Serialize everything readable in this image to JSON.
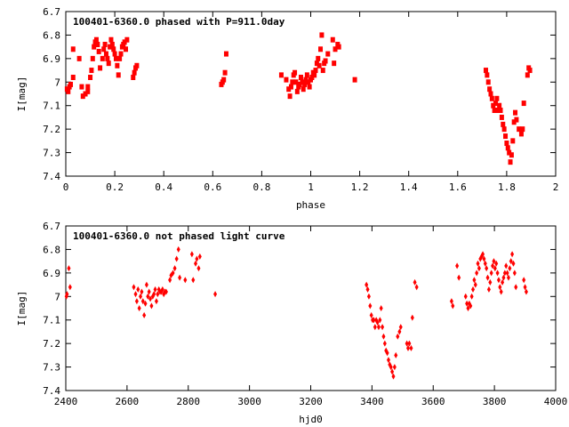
{
  "chart_data": [
    {
      "type": "scatter",
      "title": "100401-6360.0 phased with P=911.0day",
      "xlabel": "phase",
      "ylabel": "I[mag]",
      "xlim": [
        0,
        2
      ],
      "ylim": [
        6.7,
        7.4
      ],
      "y_inverted": true,
      "x_ticks": [
        "0",
        "0.2",
        "0.4",
        "0.6",
        "0.8",
        "1",
        "1.2",
        "1.4",
        "1.6",
        "1.8",
        "2"
      ],
      "y_ticks": [
        "6.7",
        "6.8",
        "6.9",
        "7",
        "7.1",
        "7.2",
        "7.3",
        "7.4"
      ],
      "marker": "square",
      "color": "#ff0000",
      "points": [
        [
          0.005,
          7.03
        ],
        [
          0.01,
          7.04
        ],
        [
          0.015,
          7.02
        ],
        [
          0.02,
          7.01
        ],
        [
          0.03,
          6.98
        ],
        [
          0.03,
          6.86
        ],
        [
          0.055,
          6.9
        ],
        [
          0.065,
          7.02
        ],
        [
          0.07,
          7.06
        ],
        [
          0.08,
          7.05
        ],
        [
          0.09,
          7.04
        ],
        [
          0.09,
          7.02
        ],
        [
          0.1,
          6.98
        ],
        [
          0.105,
          6.95
        ],
        [
          0.11,
          6.9
        ],
        [
          0.115,
          6.85
        ],
        [
          0.12,
          6.83
        ],
        [
          0.125,
          6.82
        ],
        [
          0.13,
          6.84
        ],
        [
          0.135,
          6.87
        ],
        [
          0.14,
          6.94
        ],
        [
          0.15,
          6.9
        ],
        [
          0.155,
          6.86
        ],
        [
          0.16,
          6.84
        ],
        [
          0.165,
          6.88
        ],
        [
          0.17,
          6.9
        ],
        [
          0.175,
          6.92
        ],
        [
          0.18,
          6.85
        ],
        [
          0.185,
          6.82
        ],
        [
          0.19,
          6.84
        ],
        [
          0.195,
          6.86
        ],
        [
          0.2,
          6.88
        ],
        [
          0.205,
          6.9
        ],
        [
          0.21,
          6.93
        ],
        [
          0.215,
          6.97
        ],
        [
          0.22,
          6.9
        ],
        [
          0.225,
          6.88
        ],
        [
          0.23,
          6.85
        ],
        [
          0.235,
          6.84
        ],
        [
          0.24,
          6.83
        ],
        [
          0.245,
          6.86
        ],
        [
          0.25,
          6.82
        ],
        [
          0.275,
          6.98
        ],
        [
          0.28,
          6.96
        ],
        [
          0.285,
          6.94
        ],
        [
          0.29,
          6.93
        ],
        [
          0.635,
          7.01
        ],
        [
          0.64,
          7.0
        ],
        [
          0.645,
          6.99
        ],
        [
          0.65,
          6.96
        ],
        [
          0.655,
          6.88
        ],
        [
          0.88,
          6.97
        ],
        [
          0.9,
          6.99
        ],
        [
          0.91,
          7.03
        ],
        [
          0.915,
          7.06
        ],
        [
          0.92,
          7.02
        ],
        [
          0.925,
          7.0
        ],
        [
          0.93,
          6.97
        ],
        [
          0.935,
          6.96
        ],
        [
          0.94,
          7.0
        ],
        [
          0.945,
          7.04
        ],
        [
          0.95,
          7.02
        ],
        [
          0.955,
          7.01
        ],
        [
          0.96,
          6.98
        ],
        [
          0.965,
          7.0
        ],
        [
          0.97,
          7.03
        ],
        [
          0.975,
          7.01
        ],
        [
          0.98,
          6.99
        ],
        [
          0.985,
          6.97
        ],
        [
          0.99,
          7.0
        ],
        [
          0.995,
          7.02
        ],
        [
          1.0,
          6.99
        ],
        [
          1.005,
          6.98
        ],
        [
          1.01,
          6.96
        ],
        [
          1.015,
          6.97
        ],
        [
          1.02,
          6.95
        ],
        [
          1.025,
          6.92
        ],
        [
          1.03,
          6.9
        ],
        [
          1.035,
          6.93
        ],
        [
          1.04,
          6.86
        ],
        [
          1.045,
          6.8
        ],
        [
          1.05,
          6.95
        ],
        [
          1.055,
          6.92
        ],
        [
          1.06,
          6.91
        ],
        [
          1.07,
          6.88
        ],
        [
          1.09,
          6.82
        ],
        [
          1.095,
          6.92
        ],
        [
          1.1,
          6.86
        ],
        [
          1.11,
          6.84
        ],
        [
          1.115,
          6.85
        ],
        [
          1.18,
          6.99
        ],
        [
          1.715,
          6.95
        ],
        [
          1.72,
          6.97
        ],
        [
          1.725,
          7.0
        ],
        [
          1.73,
          7.03
        ],
        [
          1.735,
          7.05
        ],
        [
          1.74,
          7.07
        ],
        [
          1.745,
          7.1
        ],
        [
          1.75,
          7.12
        ],
        [
          1.755,
          7.09
        ],
        [
          1.76,
          7.07
        ],
        [
          1.765,
          7.12
        ],
        [
          1.77,
          7.1
        ],
        [
          1.775,
          7.12
        ],
        [
          1.78,
          7.15
        ],
        [
          1.785,
          7.18
        ],
        [
          1.79,
          7.2
        ],
        [
          1.795,
          7.23
        ],
        [
          1.8,
          7.26
        ],
        [
          1.805,
          7.28
        ],
        [
          1.81,
          7.3
        ],
        [
          1.815,
          7.34
        ],
        [
          1.82,
          7.31
        ],
        [
          1.825,
          7.25
        ],
        [
          1.83,
          7.17
        ],
        [
          1.835,
          7.13
        ],
        [
          1.84,
          7.16
        ],
        [
          1.85,
          7.2
        ],
        [
          1.86,
          7.22
        ],
        [
          1.865,
          7.2
        ],
        [
          1.87,
          7.09
        ],
        [
          1.885,
          6.97
        ],
        [
          1.89,
          6.94
        ],
        [
          1.895,
          6.95
        ]
      ]
    },
    {
      "type": "scatter",
      "title": "100401-6360.0 not phased light curve",
      "xlabel": "hjd0",
      "ylabel": "I[mag]",
      "xlim": [
        2400,
        4000
      ],
      "ylim": [
        6.7,
        7.4
      ],
      "y_inverted": true,
      "x_ticks": [
        "2400",
        "2600",
        "2800",
        "3000",
        "3200",
        "3400",
        "3600",
        "3800",
        "4000"
      ],
      "y_ticks": [
        "6.7",
        "6.8",
        "6.9",
        "7",
        "7.1",
        "7.2",
        "7.3",
        "7.4"
      ],
      "marker": "diamond",
      "color": "#ff0000",
      "points": [
        [
          2402,
          7.0
        ],
        [
          2404,
          6.99
        ],
        [
          2410,
          6.88
        ],
        [
          2414,
          6.96
        ],
        [
          2622,
          6.96
        ],
        [
          2628,
          6.99
        ],
        [
          2632,
          7.02
        ],
        [
          2636,
          6.97
        ],
        [
          2640,
          7.05
        ],
        [
          2644,
          7.0
        ],
        [
          2648,
          6.98
        ],
        [
          2652,
          7.02
        ],
        [
          2656,
          7.08
        ],
        [
          2660,
          7.03
        ],
        [
          2664,
          6.95
        ],
        [
          2668,
          7.0
        ],
        [
          2672,
          6.98
        ],
        [
          2676,
          7.01
        ],
        [
          2680,
          7.04
        ],
        [
          2684,
          7.0
        ],
        [
          2688,
          6.99
        ],
        [
          2692,
          6.97
        ],
        [
          2696,
          7.02
        ],
        [
          2700,
          6.99
        ],
        [
          2704,
          6.97
        ],
        [
          2708,
          6.98
        ],
        [
          2712,
          6.98
        ],
        [
          2716,
          6.97
        ],
        [
          2720,
          6.99
        ],
        [
          2724,
          6.98
        ],
        [
          2728,
          6.98
        ],
        [
          2740,
          6.93
        ],
        [
          2744,
          6.91
        ],
        [
          2750,
          6.9
        ],
        [
          2756,
          6.88
        ],
        [
          2762,
          6.84
        ],
        [
          2768,
          6.8
        ],
        [
          2772,
          6.92
        ],
        [
          2790,
          6.93
        ],
        [
          2812,
          6.82
        ],
        [
          2816,
          6.93
        ],
        [
          2824,
          6.86
        ],
        [
          2828,
          6.84
        ],
        [
          2834,
          6.88
        ],
        [
          2838,
          6.83
        ],
        [
          2888,
          6.99
        ],
        [
          3382,
          6.95
        ],
        [
          3386,
          6.97
        ],
        [
          3390,
          7.0
        ],
        [
          3394,
          7.04
        ],
        [
          3398,
          7.08
        ],
        [
          3402,
          7.1
        ],
        [
          3406,
          7.1
        ],
        [
          3410,
          7.13
        ],
        [
          3414,
          7.1
        ],
        [
          3418,
          7.11
        ],
        [
          3422,
          7.13
        ],
        [
          3426,
          7.1
        ],
        [
          3430,
          7.05
        ],
        [
          3434,
          7.13
        ],
        [
          3438,
          7.17
        ],
        [
          3442,
          7.2
        ],
        [
          3446,
          7.23
        ],
        [
          3450,
          7.24
        ],
        [
          3454,
          7.27
        ],
        [
          3458,
          7.29
        ],
        [
          3462,
          7.3
        ],
        [
          3466,
          7.32
        ],
        [
          3470,
          7.34
        ],
        [
          3474,
          7.3
        ],
        [
          3478,
          7.25
        ],
        [
          3484,
          7.17
        ],
        [
          3490,
          7.15
        ],
        [
          3494,
          7.13
        ],
        [
          3514,
          7.2
        ],
        [
          3518,
          7.22
        ],
        [
          3522,
          7.2
        ],
        [
          3528,
          7.22
        ],
        [
          3532,
          7.09
        ],
        [
          3540,
          6.94
        ],
        [
          3546,
          6.96
        ],
        [
          3660,
          7.02
        ],
        [
          3664,
          7.04
        ],
        [
          3678,
          6.87
        ],
        [
          3684,
          6.92
        ],
        [
          3706,
          7.0
        ],
        [
          3710,
          7.03
        ],
        [
          3714,
          7.05
        ],
        [
          3718,
          7.03
        ],
        [
          3722,
          7.04
        ],
        [
          3726,
          7.0
        ],
        [
          3730,
          6.97
        ],
        [
          3734,
          6.93
        ],
        [
          3738,
          6.95
        ],
        [
          3742,
          6.9
        ],
        [
          3746,
          6.86
        ],
        [
          3750,
          6.88
        ],
        [
          3754,
          6.84
        ],
        [
          3758,
          6.83
        ],
        [
          3762,
          6.82
        ],
        [
          3766,
          6.84
        ],
        [
          3770,
          6.86
        ],
        [
          3774,
          6.88
        ],
        [
          3778,
          6.92
        ],
        [
          3782,
          6.97
        ],
        [
          3786,
          6.94
        ],
        [
          3790,
          6.9
        ],
        [
          3794,
          6.87
        ],
        [
          3798,
          6.85
        ],
        [
          3802,
          6.88
        ],
        [
          3806,
          6.86
        ],
        [
          3810,
          6.9
        ],
        [
          3814,
          6.93
        ],
        [
          3818,
          6.96
        ],
        [
          3822,
          6.98
        ],
        [
          3826,
          6.94
        ],
        [
          3830,
          6.92
        ],
        [
          3834,
          6.9
        ],
        [
          3838,
          6.87
        ],
        [
          3842,
          6.9
        ],
        [
          3846,
          6.92
        ],
        [
          3850,
          6.88
        ],
        [
          3854,
          6.85
        ],
        [
          3858,
          6.82
        ],
        [
          3862,
          6.86
        ],
        [
          3866,
          6.9
        ],
        [
          3870,
          6.96
        ],
        [
          3896,
          6.93
        ],
        [
          3900,
          6.96
        ],
        [
          3904,
          6.98
        ]
      ]
    }
  ]
}
